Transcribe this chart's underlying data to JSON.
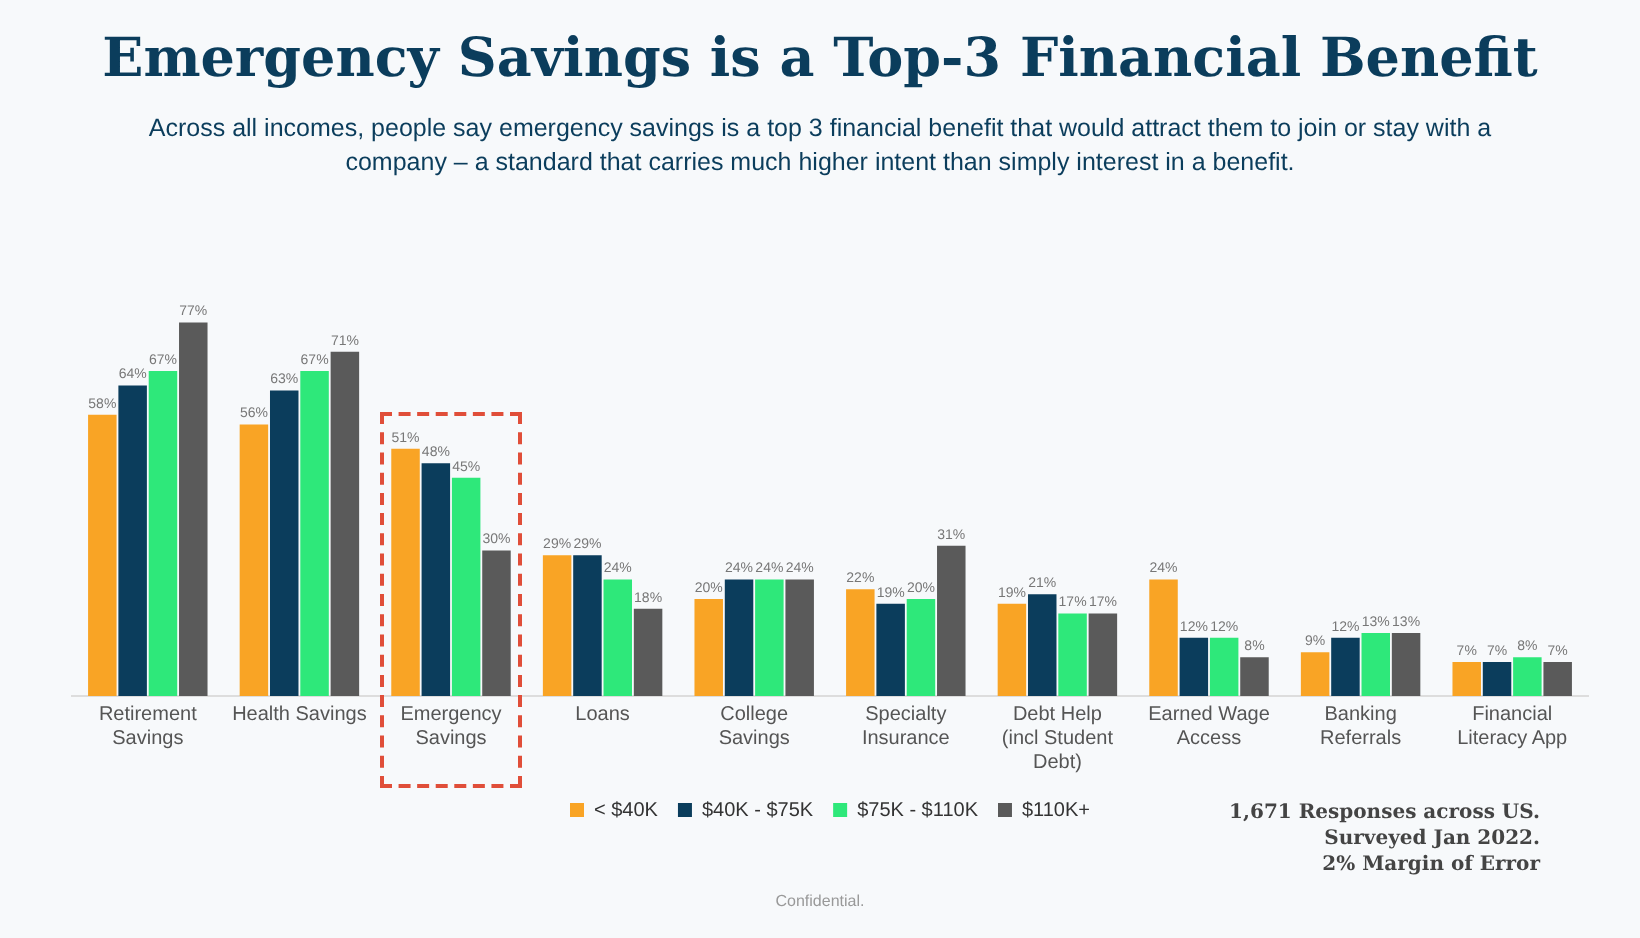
{
  "chart_data": {
    "type": "bar",
    "title": "Emergency Savings is a Top-3 Financial Benefit",
    "subtitle": "Across all incomes, people say emergency savings is a top 3 financial benefit that would attract them to join or stay with a company – a standard that carries much higher intent than simply interest in a benefit.",
    "categories": [
      "Retirement Savings",
      "Health Savings",
      "Emergency Savings",
      "Loans",
      "College Savings",
      "Specialty Insurance",
      "Debt Help (incl Student Debt)",
      "Earned Wage Access",
      "Banking Referrals",
      "Financial Literacy App"
    ],
    "series": [
      {
        "name": "< $40K",
        "color": "#f9a425",
        "values": [
          58,
          56,
          51,
          29,
          20,
          22,
          19,
          24,
          9,
          7
        ],
        "value_labels": [
          "58%",
          "56%",
          "51%",
          "29%",
          "20%",
          "22%",
          "19%",
          "24%",
          "9%",
          "7%"
        ]
      },
      {
        "name": "$40K - $75K",
        "color": "#0b3d5c",
        "values": [
          64,
          63,
          48,
          29,
          24,
          19,
          21,
          12,
          12,
          7
        ],
        "value_labels": [
          "64%",
          "63%",
          "48%",
          "29%",
          "24%",
          "19%",
          "21%",
          "12%",
          "12%",
          "7%"
        ]
      },
      {
        "name": "$75K - $110K",
        "color": "#2ee87a",
        "values": [
          67,
          67,
          45,
          24,
          24,
          20,
          17,
          12,
          13,
          8
        ],
        "value_labels": [
          "67%",
          "67%",
          "45%",
          "24%",
          "24%",
          "20%",
          "17%",
          "12%",
          "13%",
          "8%"
        ]
      },
      {
        "name": "$110K+",
        "color": "#5a5a5a",
        "values": [
          77,
          71,
          30,
          18,
          24,
          31,
          17,
          8,
          13,
          7
        ],
        "value_labels": [
          "77%",
          "71%",
          "30%",
          "18%",
          "24%",
          "31%",
          "17%",
          "8%",
          "13%",
          "7%"
        ]
      }
    ],
    "legend": "bottom",
    "grid": false,
    "annotations": [
      "1,671 Responses across US.\nSurveyed Jan 2022.\n2% Margin of Error",
      "Confidential."
    ]
  }
}
